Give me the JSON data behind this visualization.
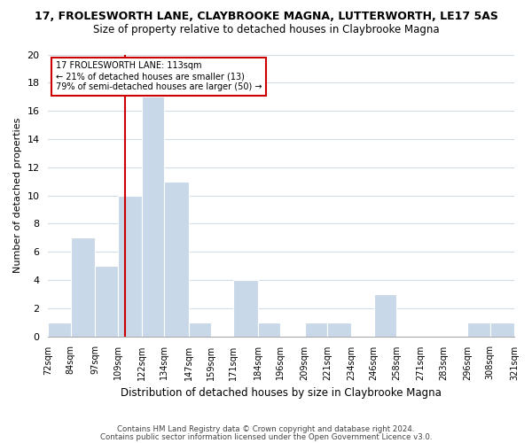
{
  "title_line1": "17, FROLESWORTH LANE, CLAYBROOKE MAGNA, LUTTERWORTH, LE17 5AS",
  "title_line2": "Size of property relative to detached houses in Claybrooke Magna",
  "xlabel": "Distribution of detached houses by size in Claybrooke Magna",
  "ylabel": "Number of detached properties",
  "bin_edges": [
    72,
    84,
    97,
    109,
    122,
    134,
    147,
    159,
    171,
    184,
    196,
    209,
    221,
    234,
    246,
    258,
    271,
    283,
    296,
    308,
    321
  ],
  "bin_labels": [
    "72sqm",
    "84sqm",
    "97sqm",
    "109sqm",
    "122sqm",
    "134sqm",
    "147sqm",
    "159sqm",
    "171sqm",
    "184sqm",
    "196sqm",
    "209sqm",
    "221sqm",
    "234sqm",
    "246sqm",
    "258sqm",
    "271sqm",
    "283sqm",
    "296sqm",
    "308sqm",
    "321sqm"
  ],
  "counts": [
    1,
    7,
    5,
    10,
    17,
    11,
    1,
    0,
    4,
    1,
    0,
    1,
    1,
    0,
    3,
    0,
    0,
    0,
    1,
    1
  ],
  "bar_color": "#c8d8e8",
  "property_line_x": 113,
  "property_line_color": "#cc0000",
  "annotation_text_line1": "17 FROLESWORTH LANE: 113sqm",
  "annotation_text_line2": "← 21% of detached houses are smaller (13)",
  "annotation_text_line3": "79% of semi-detached houses are larger (50) →",
  "ylim": [
    0,
    20
  ],
  "footnote1": "Contains HM Land Registry data © Crown copyright and database right 2024.",
  "footnote2": "Contains public sector information licensed under the Open Government Licence v3.0.",
  "background_color": "#ffffff",
  "grid_color": "#d0dce8"
}
